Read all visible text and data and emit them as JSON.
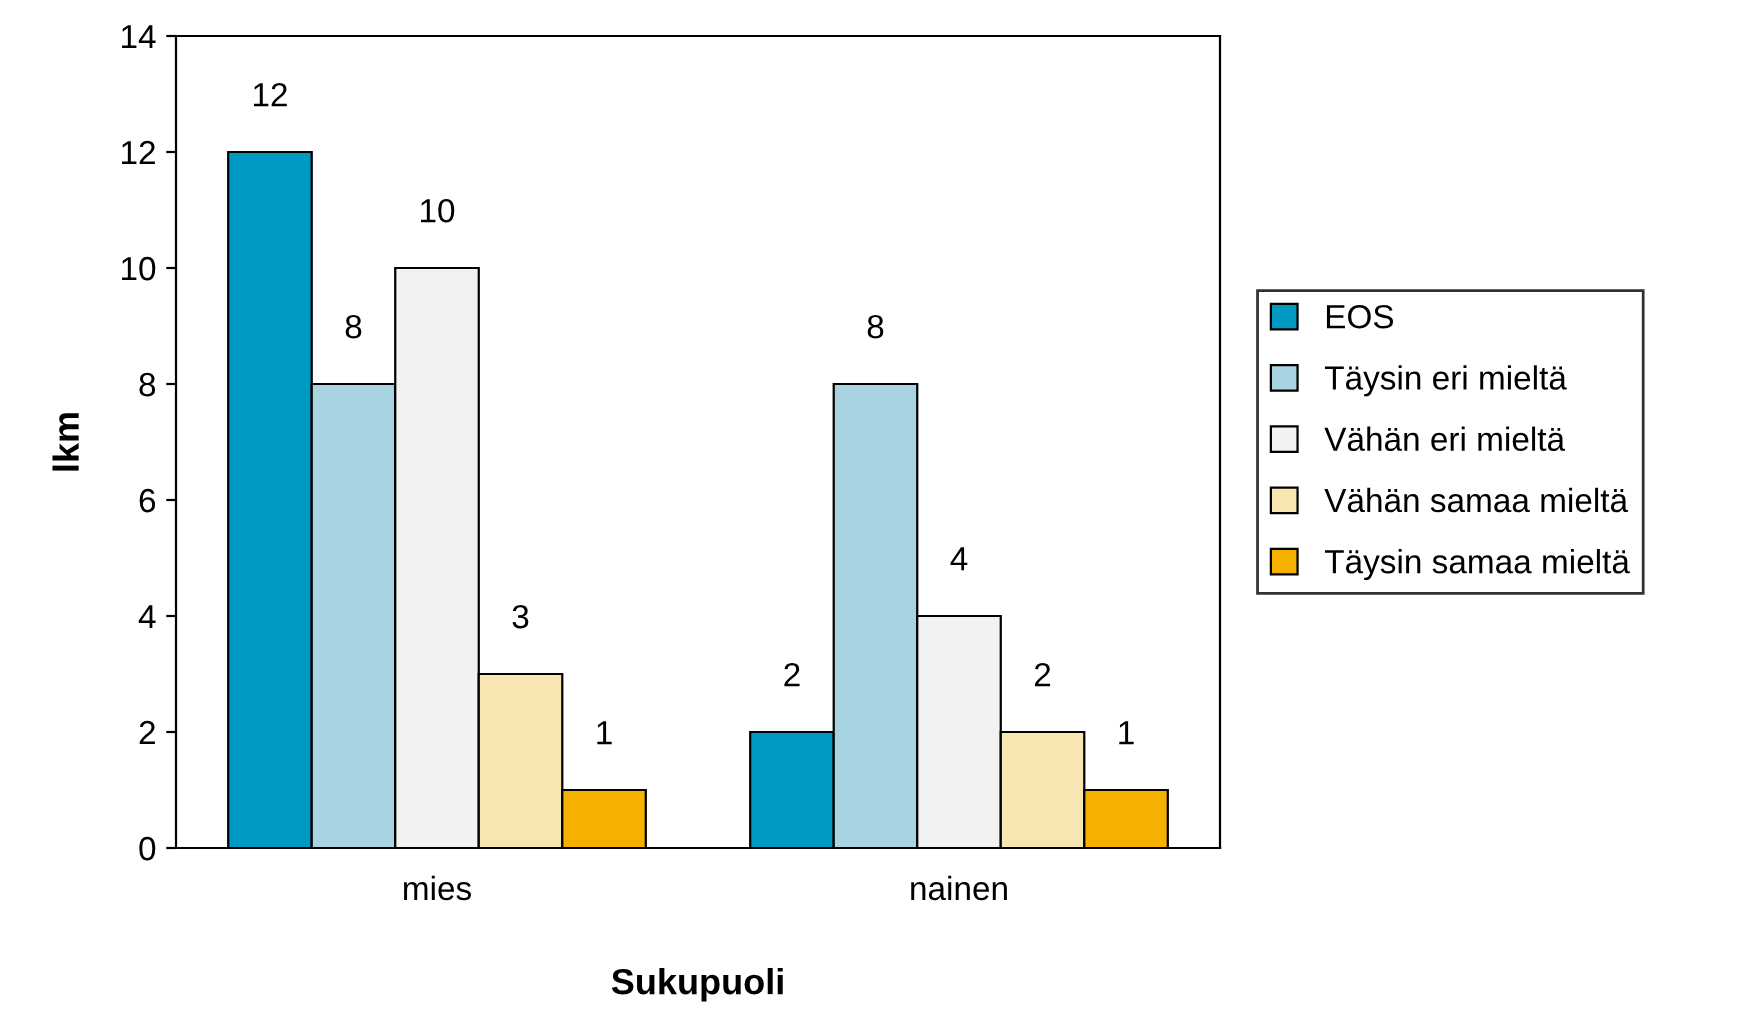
{
  "chart_data": {
    "type": "bar",
    "xlabel": "Sukupuoli",
    "ylabel": "lkm",
    "categories": [
      "mies",
      "nainen"
    ],
    "series": [
      {
        "name": "EOS",
        "color": "#0099c2",
        "values": [
          12,
          2
        ]
      },
      {
        "name": "Täysin eri mieltä",
        "color": "#a8d4e2",
        "values": [
          8,
          8
        ]
      },
      {
        "name": "Vähän eri mieltä",
        "color": "#f2f2f2",
        "values": [
          10,
          4
        ]
      },
      {
        "name": "Vähän samaa mieltä",
        "color": "#f8e6b2",
        "values": [
          3,
          2
        ]
      },
      {
        "name": "Täysin samaa mieltä",
        "color": "#f5b000",
        "values": [
          1,
          1
        ]
      }
    ],
    "ylim": [
      0,
      14
    ],
    "yticks": [
      0,
      2,
      4,
      6,
      8,
      10,
      12,
      14
    ],
    "grid": false,
    "legend": "right",
    "data_labels": true
  }
}
